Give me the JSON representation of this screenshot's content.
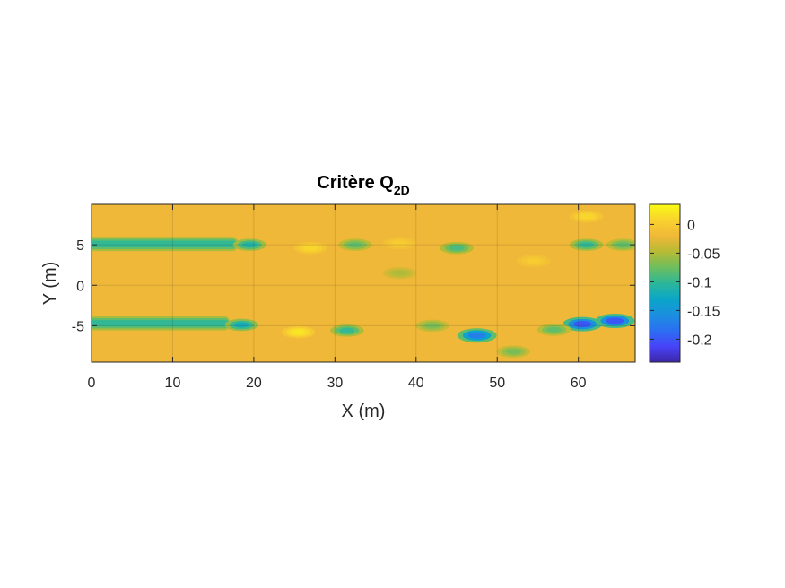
{
  "chart_data": {
    "type": "heatmap",
    "title": "Critère Q",
    "title_subscript": "2D",
    "xlabel": "X (m)",
    "ylabel": "Y (m)",
    "xlim": [
      0,
      67
    ],
    "ylim": [
      -9.5,
      10
    ],
    "x_ticks": [
      0,
      10,
      20,
      30,
      40,
      50,
      60
    ],
    "x_tick_labels": [
      "0",
      "10",
      "20",
      "30",
      "40",
      "50",
      "60"
    ],
    "y_ticks": [
      5,
      0,
      -5
    ],
    "y_tick_labels": [
      "5",
      "0",
      "-5"
    ],
    "grid": true,
    "colormap": "parula",
    "colorbar": {
      "location": "right",
      "clim": [
        -0.24,
        0.035
      ],
      "ticks": [
        0,
        -0.05,
        -0.1,
        -0.15,
        -0.2
      ],
      "tick_labels": [
        "0",
        "-0.05",
        "-0.1",
        "-0.15",
        "-0.2"
      ]
    },
    "background_value": -0.02,
    "features": [
      {
        "kind": "band",
        "x": [
          0,
          18
        ],
        "y": 5.1,
        "value": -0.1
      },
      {
        "kind": "blob",
        "x": 19.5,
        "y": 5.0,
        "value": -0.11
      },
      {
        "kind": "blob",
        "x": 32.5,
        "y": 5.0,
        "value": -0.08
      },
      {
        "kind": "blob",
        "x": 45.0,
        "y": 4.6,
        "value": -0.09
      },
      {
        "kind": "blob",
        "x": 61.0,
        "y": 5.0,
        "value": -0.1
      },
      {
        "kind": "blob",
        "x": 65.5,
        "y": 5.0,
        "value": -0.08
      },
      {
        "kind": "band",
        "x": [
          0,
          17
        ],
        "y": -4.7,
        "value": -0.1
      },
      {
        "kind": "blob",
        "x": 18.5,
        "y": -4.9,
        "value": -0.12
      },
      {
        "kind": "blob",
        "x": 31.5,
        "y": -5.6,
        "value": -0.1
      },
      {
        "kind": "blob",
        "x": 47.5,
        "y": -6.2,
        "value": -0.17
      },
      {
        "kind": "blob",
        "x": 60.5,
        "y": -4.8,
        "value": -0.2
      },
      {
        "kind": "blob",
        "x": 64.5,
        "y": -4.4,
        "value": -0.2
      },
      {
        "kind": "blob",
        "x": 57.0,
        "y": -5.5,
        "value": -0.08
      },
      {
        "kind": "blob",
        "x": 52.0,
        "y": -8.2,
        "value": -0.07
      },
      {
        "kind": "blob",
        "x": 42.0,
        "y": -5.0,
        "value": -0.07
      },
      {
        "kind": "blob",
        "x": 38.0,
        "y": 1.5,
        "value": -0.05
      },
      {
        "kind": "blob",
        "x": 25.5,
        "y": -5.8,
        "value": 0.02
      },
      {
        "kind": "blob",
        "x": 27.0,
        "y": 4.6,
        "value": 0.01
      },
      {
        "kind": "blob",
        "x": 38.0,
        "y": 5.2,
        "value": 0.0
      },
      {
        "kind": "blob",
        "x": 54.5,
        "y": 3.0,
        "value": 0.0
      },
      {
        "kind": "blob",
        "x": 61.0,
        "y": 8.5,
        "value": 0.01
      }
    ]
  }
}
